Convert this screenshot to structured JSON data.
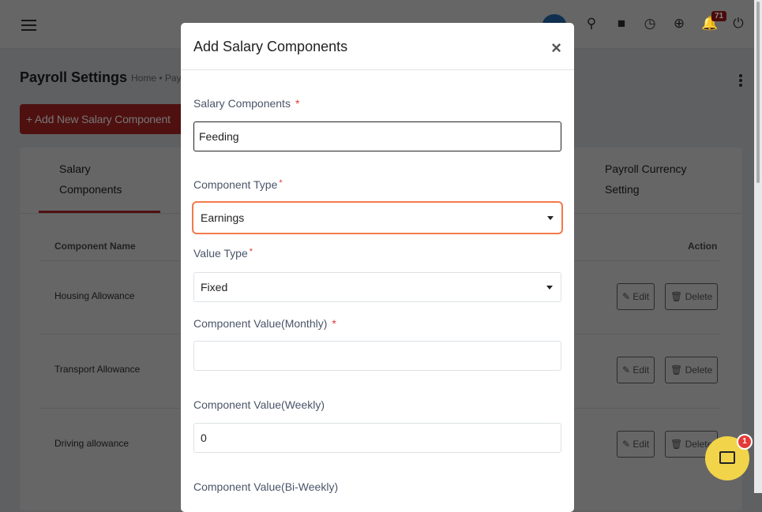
{
  "header": {
    "notification_count": "71"
  },
  "page": {
    "title": "Payroll Settings",
    "breadcrumb": "Home • Payroll Settings",
    "add_button": "Add New Salary Component"
  },
  "tabs": [
    {
      "label": "Salary Components",
      "active": true
    },
    {
      "label": "Payroll Currency Setting",
      "active": false
    }
  ],
  "table": {
    "headers": [
      "Component Name",
      "Action"
    ],
    "rows": [
      {
        "name": "Housing Allowance"
      },
      {
        "name": "Transport Allowance"
      },
      {
        "name": "Driving allowance"
      }
    ],
    "edit_label": "Edit",
    "delete_label": "Delete"
  },
  "modal": {
    "title": "Add Salary Components",
    "close": "×",
    "fields": {
      "salary_components": {
        "label": "Salary Components",
        "required": "*",
        "value": "Feeding"
      },
      "component_type": {
        "label": "Component Type",
        "required": "*",
        "value": "Earnings"
      },
      "value_type": {
        "label": "Value Type",
        "required": "*",
        "value": "Fixed"
      },
      "monthly": {
        "label": "Component Value(Monthly)",
        "required": "*",
        "value": ""
      },
      "weekly": {
        "label": "Component Value(Weekly)",
        "value": "0"
      },
      "biweekly": {
        "label": "Component Value(Bi-Weekly)"
      }
    }
  },
  "chat": {
    "badge": "1"
  },
  "colors": {
    "accent": "#c62828",
    "focus": "#f27a4a",
    "chat": "#f2d44a"
  }
}
